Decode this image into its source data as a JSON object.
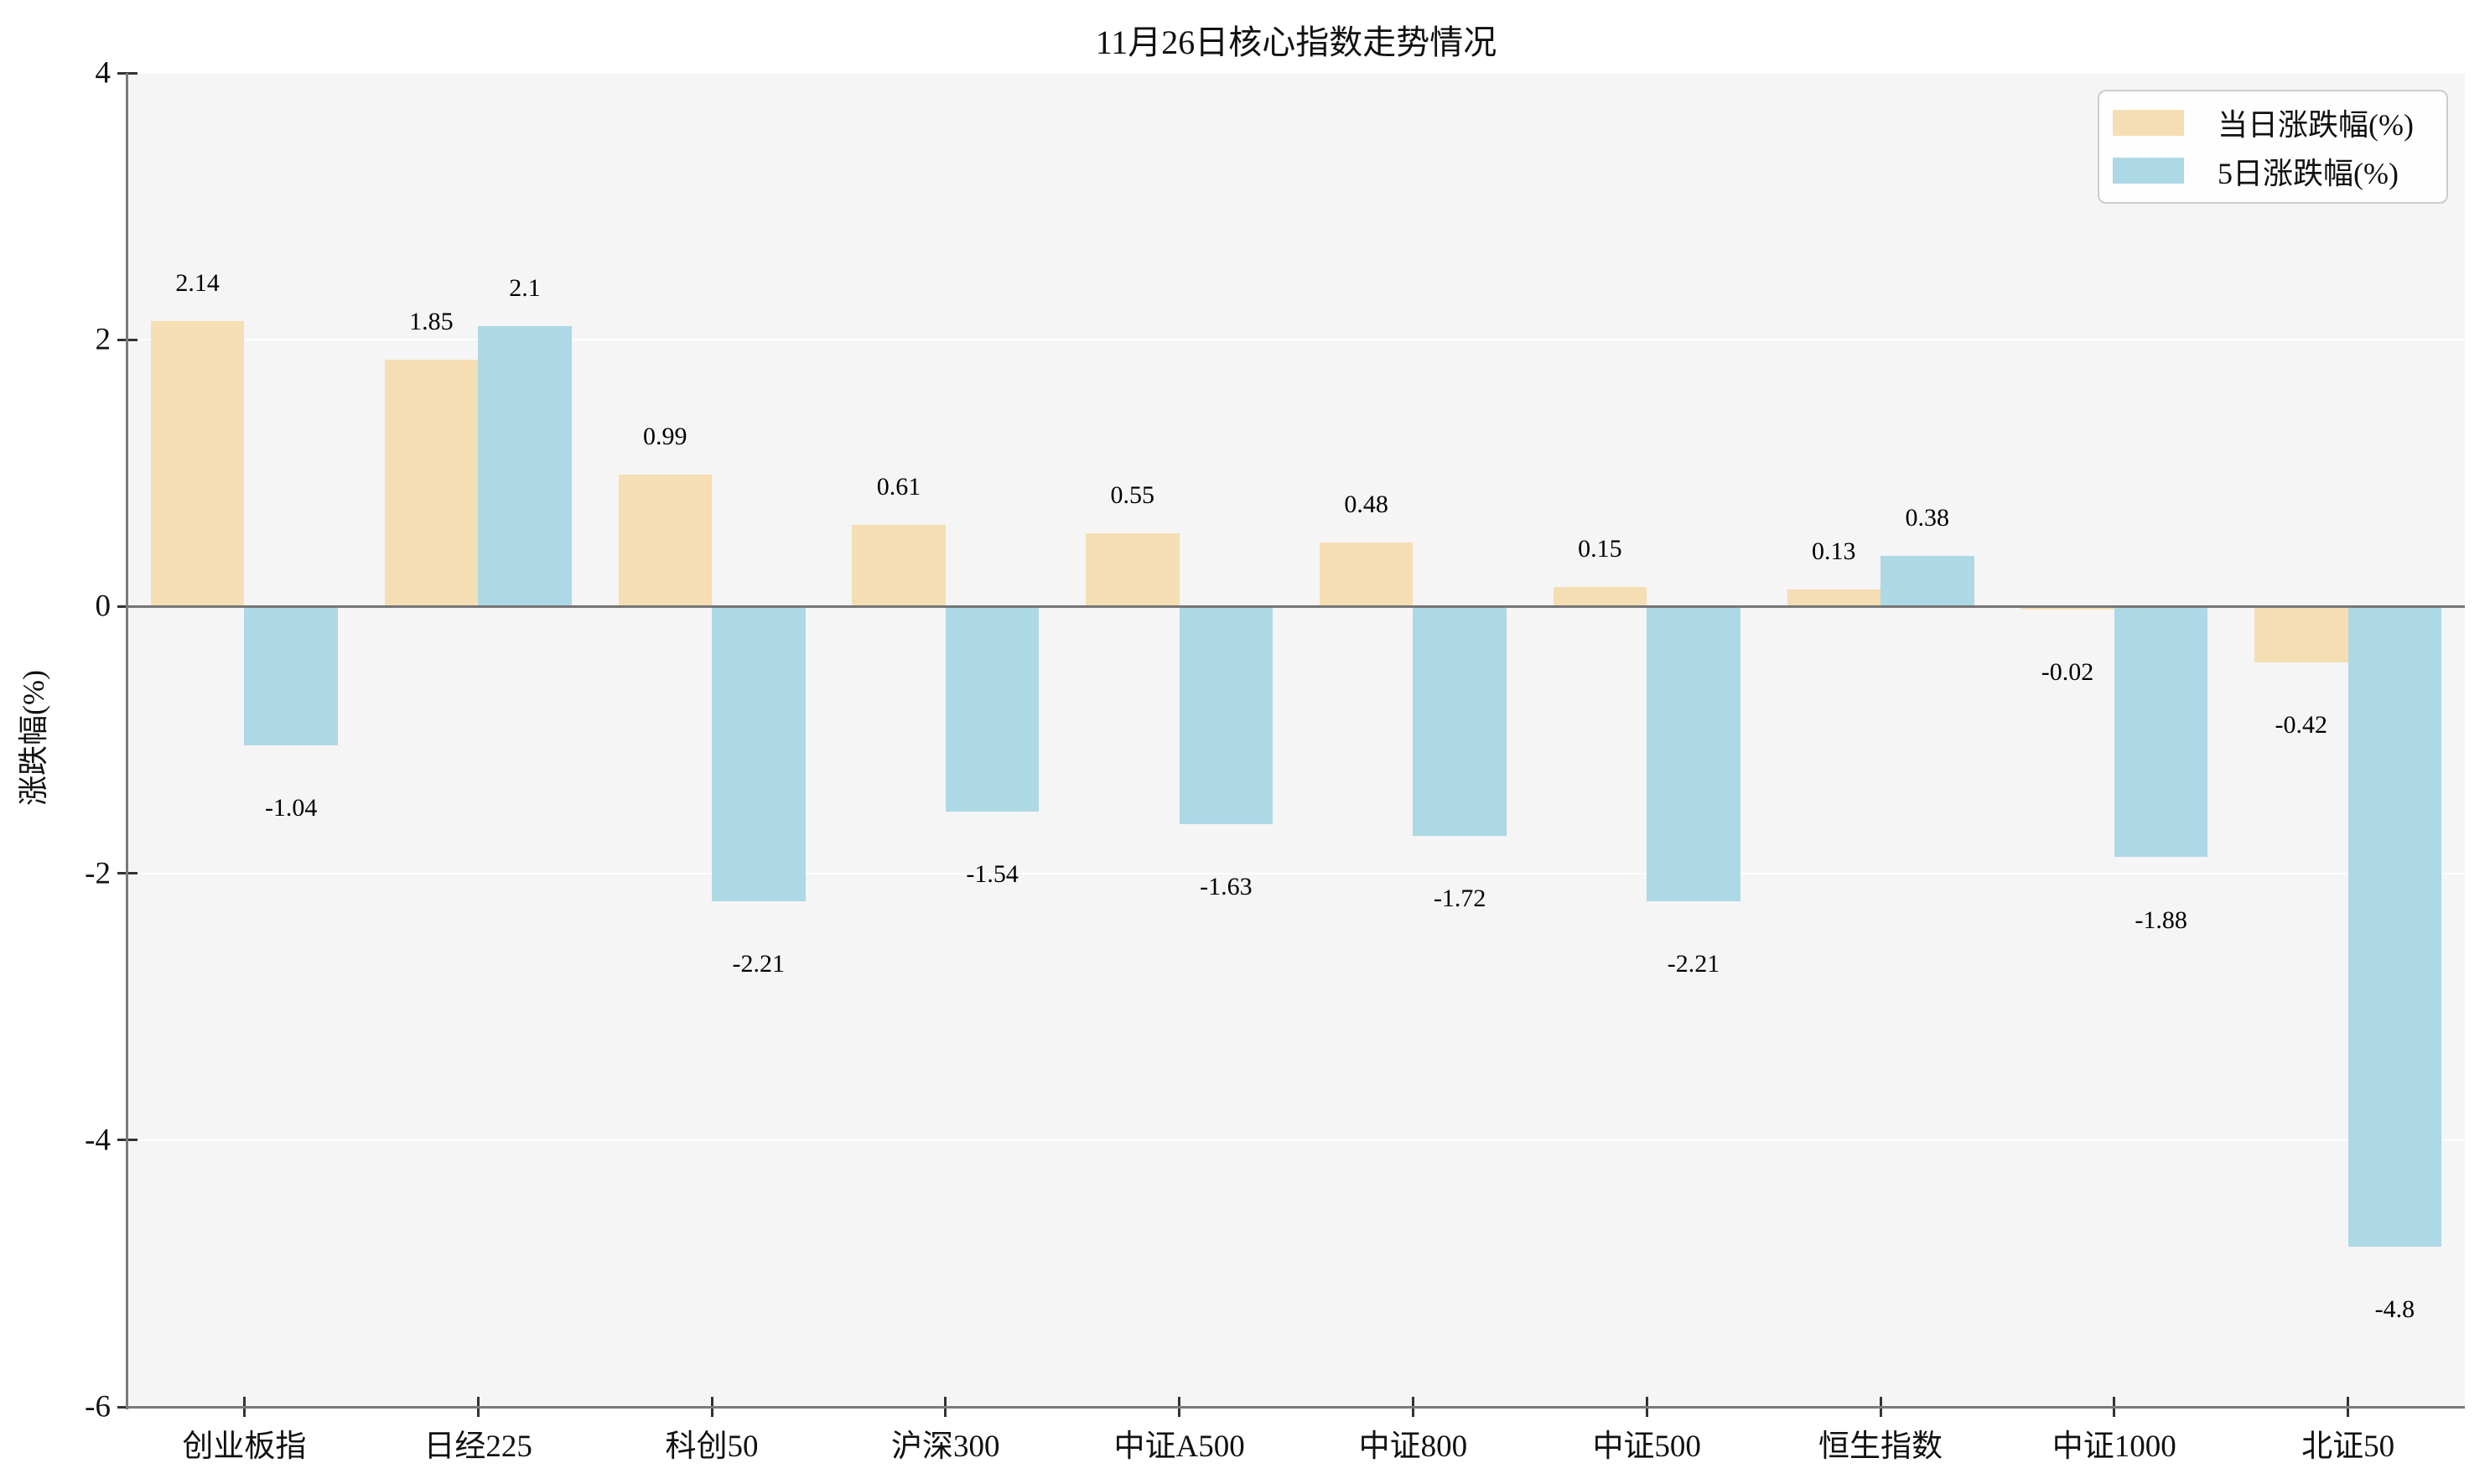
{
  "colors": {
    "daily_bar": "#F5DEB3",
    "five_day_bar": "#ADD8E6",
    "plot_background": "#F5F5F5",
    "grid": "#FFFFFF",
    "axis": "#7A7A7A",
    "legend_border": "#CCCCCC"
  },
  "chart_data": {
    "type": "bar",
    "title": "11月26日核心指数走势情况",
    "xlabel": "",
    "ylabel": "涨跌幅(%)",
    "ylim": [
      -6,
      4
    ],
    "yticks": [
      4,
      2,
      0,
      -2,
      -4,
      -6
    ],
    "grid": true,
    "grid_color": "#FFFFFF",
    "legend_position": "upper right",
    "categories": [
      "创业板指",
      "日经225",
      "科创50",
      "沪深300",
      "中证A500",
      "中证800",
      "中证500",
      "恒生指数",
      "中证1000",
      "北证50"
    ],
    "series": [
      {
        "name": "当日涨跌幅(%)",
        "color": "#F5DEB3",
        "values": [
          2.14,
          1.85,
          0.99,
          0.61,
          0.55,
          0.48,
          0.15,
          0.13,
          -0.02,
          -0.42
        ],
        "labels": [
          "2.14",
          "1.85",
          "0.99",
          "0.61",
          "0.55",
          "0.48",
          "0.15",
          "0.13",
          "-0.02",
          "-0.42"
        ]
      },
      {
        "name": "5日涨跌幅(%)",
        "color": "#ADD8E6",
        "values": [
          -1.04,
          2.1,
          -2.21,
          -1.54,
          -1.63,
          -1.72,
          -2.21,
          0.38,
          -1.88,
          -4.8
        ],
        "labels": [
          "-1.04",
          "2.1",
          "-2.21",
          "-1.54",
          "-1.63",
          "-1.72",
          "-2.21",
          "0.38",
          "-1.88",
          "-4.8"
        ]
      }
    ]
  }
}
